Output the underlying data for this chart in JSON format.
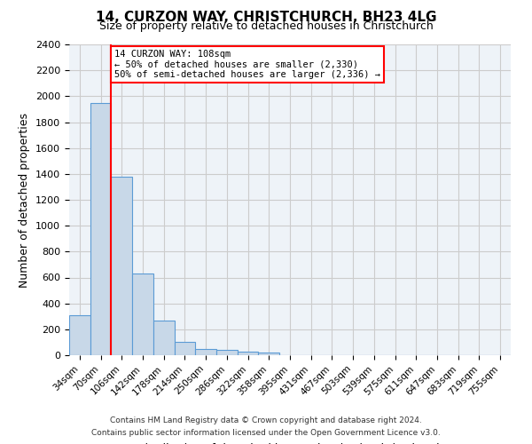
{
  "title": "14, CURZON WAY, CHRISTCHURCH, BH23 4LG",
  "subtitle": "Size of property relative to detached houses in Christchurch",
  "xlabel": "Distribution of detached houses by size in Christchurch",
  "ylabel": "Number of detached properties",
  "footer_line1": "Contains HM Land Registry data © Crown copyright and database right 2024.",
  "footer_line2": "Contains public sector information licensed under the Open Government Licence v3.0.",
  "bin_labels": [
    "34sqm",
    "70sqm",
    "106sqm",
    "142sqm",
    "178sqm",
    "214sqm",
    "250sqm",
    "286sqm",
    "322sqm",
    "358sqm",
    "395sqm",
    "431sqm",
    "467sqm",
    "503sqm",
    "539sqm",
    "575sqm",
    "611sqm",
    "647sqm",
    "683sqm",
    "719sqm",
    "755sqm"
  ],
  "bar_values": [
    310,
    1950,
    1380,
    630,
    270,
    100,
    50,
    40,
    30,
    20,
    0,
    0,
    0,
    0,
    0,
    0,
    0,
    0,
    0,
    0,
    0
  ],
  "bar_color": "#c8d8e8",
  "bar_edge_color": "#5b9bd5",
  "vline_position": 1.5,
  "annotation_text": "14 CURZON WAY: 108sqm\n← 50% of detached houses are smaller (2,330)\n50% of semi-detached houses are larger (2,336) →",
  "annotation_box_color": "white",
  "annotation_box_edge": "red",
  "vline_color": "red",
  "ylim": [
    0,
    2400
  ],
  "yticks": [
    0,
    200,
    400,
    600,
    800,
    1000,
    1200,
    1400,
    1600,
    1800,
    2000,
    2200,
    2400
  ],
  "grid_color": "#cccccc",
  "plot_bg_color": "#eef3f8"
}
